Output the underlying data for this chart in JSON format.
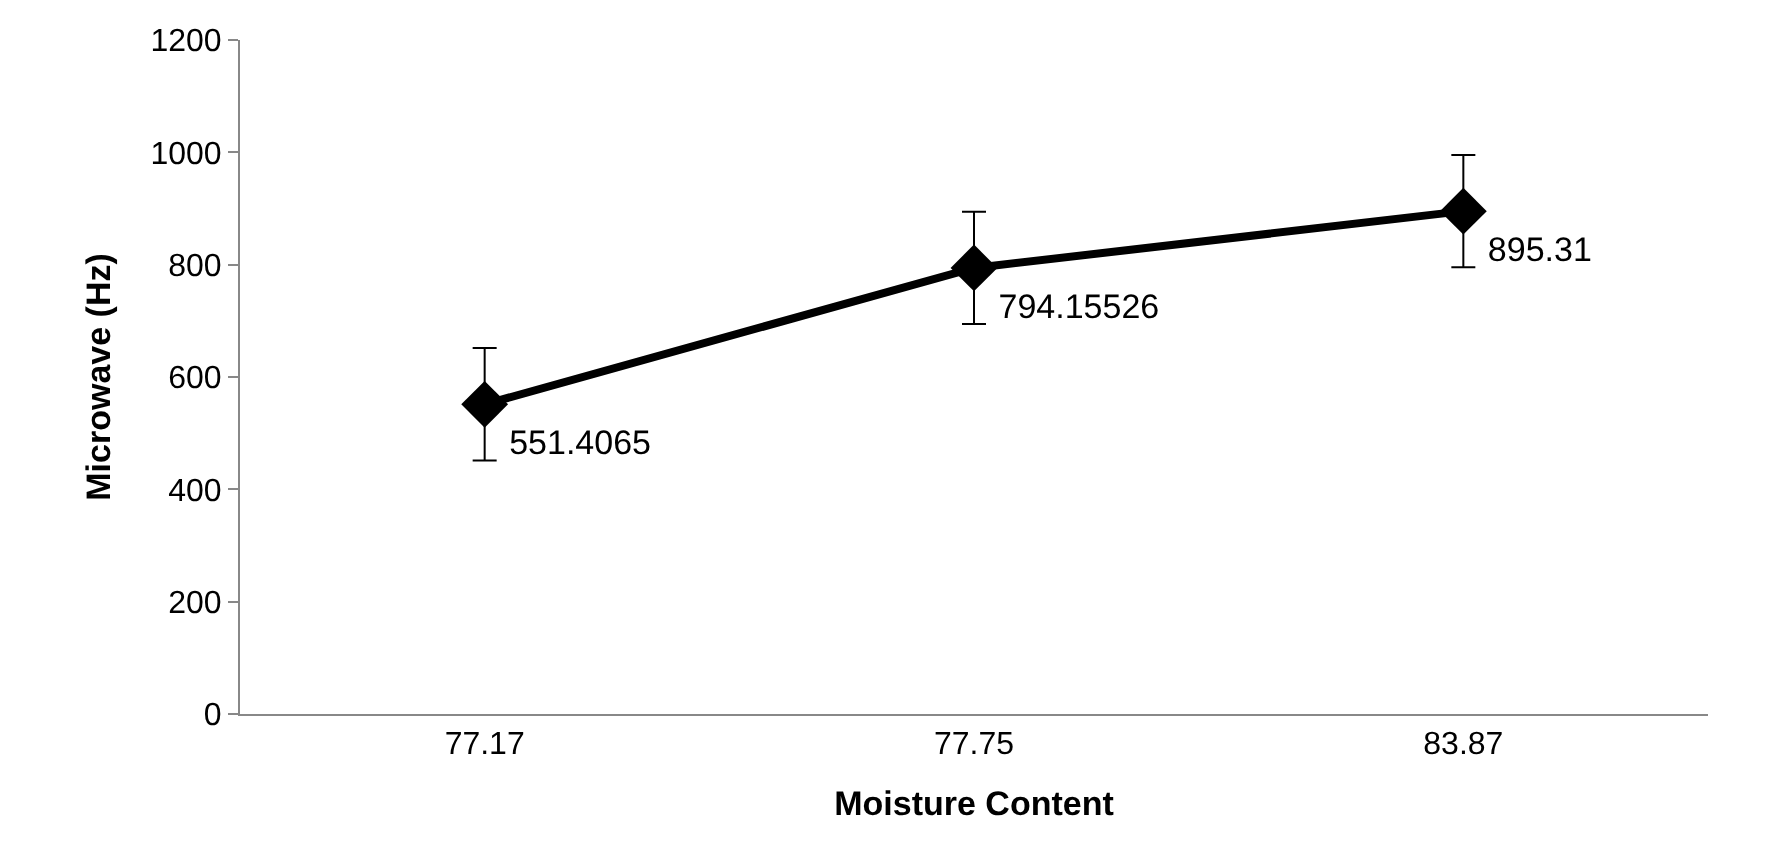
{
  "chart_data": {
    "type": "line",
    "xlabel": "Moisture Content",
    "ylabel": "Microwave (Hz)",
    "categories": [
      "77.17",
      "77.75",
      "83.87"
    ],
    "series": [
      {
        "color": "#000000",
        "values": [
          551.4065,
          794.15526,
          895.31
        ],
        "errors": [
          100,
          100,
          100
        ]
      }
    ],
    "data_labels": true,
    "marker": "diamond",
    "line_style": "solid",
    "legend": false,
    "ylim": [
      0,
      1200
    ],
    "yticks": [
      0,
      200,
      400,
      600,
      800,
      1000,
      1200
    ]
  }
}
